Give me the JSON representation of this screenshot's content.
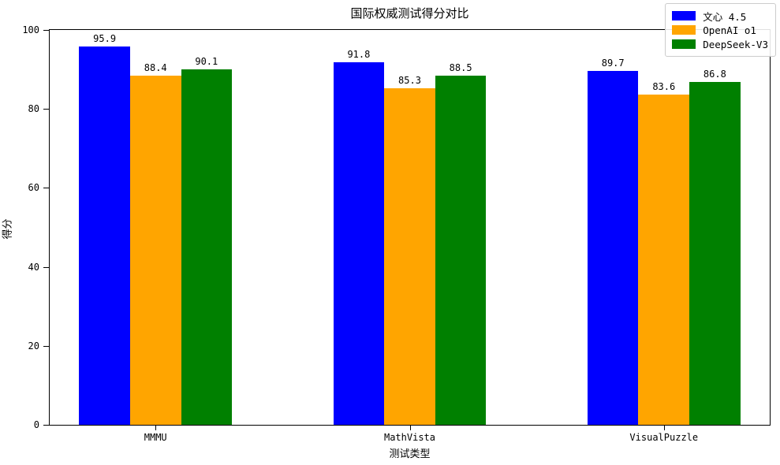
{
  "chart_data": {
    "type": "bar",
    "title": "国际权威测试得分对比",
    "xlabel": "测试类型",
    "ylabel": "得分",
    "categories": [
      "MMMU",
      "MathVista",
      "VisualPuzzle"
    ],
    "series": [
      {
        "name": "文心 4.5",
        "color": "#0000ff",
        "values": [
          95.9,
          91.8,
          89.7
        ]
      },
      {
        "name": "OpenAI o1",
        "color": "#ffa500",
        "values": [
          88.4,
          85.3,
          83.6
        ]
      },
      {
        "name": "DeepSeek-V3",
        "color": "#008000",
        "values": [
          90.1,
          88.5,
          86.8
        ]
      }
    ],
    "bar_value_labels": [
      [
        "95.9",
        "91.8",
        "89.7"
      ],
      [
        "88.4",
        "85.3",
        "83.6"
      ],
      [
        "90.1",
        "88.5",
        "86.8"
      ]
    ],
    "ylim": [
      0,
      100
    ],
    "yticks": [
      "0",
      "20",
      "40",
      "60",
      "80",
      "100"
    ],
    "legend_position": "upper right",
    "grid": false,
    "colors": {
      "background": "#ffffff",
      "axis": "#000000",
      "text": "#000000",
      "legend_border": "#cccccc"
    }
  }
}
